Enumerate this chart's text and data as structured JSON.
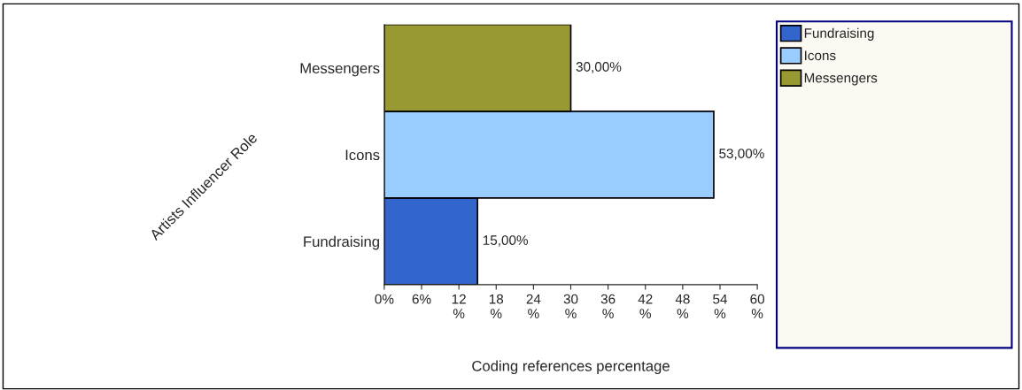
{
  "chart_data": {
    "type": "bar",
    "orientation": "horizontal",
    "xlabel": "Coding references percentage",
    "ylabel": "Artists Influencer Role",
    "categories": [
      "Messengers",
      "Icons",
      "Fundraising"
    ],
    "series": [
      {
        "name": "Fundraising",
        "color": "#3366cc",
        "values": [
          null,
          null,
          15
        ],
        "value_labels": [
          null,
          null,
          "15,00%"
        ]
      },
      {
        "name": "Icons",
        "color": "#99ccff",
        "values": [
          null,
          53,
          null
        ],
        "value_labels": [
          null,
          "53,00%",
          null
        ]
      },
      {
        "name": "Messengers",
        "color": "#999933",
        "values": [
          30,
          null,
          null
        ],
        "value_labels": [
          "30,00%",
          null,
          null
        ]
      }
    ],
    "xlim": [
      0,
      60
    ],
    "xticks": [
      {
        "value": 0,
        "label": "0%"
      },
      {
        "value": 6,
        "label": "6%"
      },
      {
        "value": 12,
        "label": "12\n%"
      },
      {
        "value": 18,
        "label": "18\n%"
      },
      {
        "value": 24,
        "label": "24\n%"
      },
      {
        "value": 30,
        "label": "30\n%"
      },
      {
        "value": 36,
        "label": "36\n%"
      },
      {
        "value": 42,
        "label": "42\n%"
      },
      {
        "value": 48,
        "label": "48\n%"
      },
      {
        "value": 54,
        "label": "54\n%"
      },
      {
        "value": 60,
        "label": "60\n%"
      }
    ],
    "grid": false,
    "legend": "right"
  }
}
